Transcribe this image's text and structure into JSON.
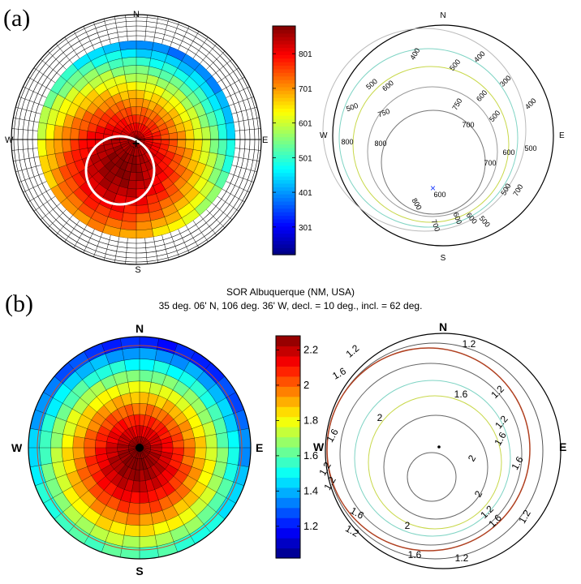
{
  "panel_a": {
    "label": "(a)",
    "polar_map": {
      "compass": {
        "n": "N",
        "e": "E",
        "s": "S",
        "w": "W"
      },
      "center_marker": "+"
    },
    "colorbar": {
      "ticks": [
        "801",
        "701",
        "601",
        "501",
        "401",
        "301"
      ],
      "tick_values": [
        80,
        70,
        60,
        50,
        40,
        30
      ],
      "range": [
        22,
        88
      ]
    },
    "contour_map": {
      "compass": {
        "n": "N",
        "e": "E",
        "s": "S",
        "w": "W"
      },
      "labels": [
        "400",
        "500",
        "500",
        "600",
        "400",
        "300",
        "750",
        "600",
        "500",
        "400",
        "500",
        "750",
        "800",
        "800",
        "600",
        "700",
        "700",
        "500",
        "800",
        "600",
        "500",
        "700",
        "700",
        "600",
        "600",
        "500"
      ],
      "center_marker": "×"
    }
  },
  "panel_b": {
    "label": "(b)",
    "title_line1": "SOR Albuquerque (NM, USA)",
    "title_line2": "35 deg. 06' N, 106 deg. 36' W, decl. = 10 deg., incl. = 62 deg.",
    "polar_map": {
      "compass": {
        "n": "N",
        "e": "E",
        "s": "S",
        "w": "W"
      }
    },
    "colorbar": {
      "ticks": [
        "2.2",
        "2",
        "1.8",
        "1.6",
        "1.4",
        "1.2"
      ],
      "tick_values": [
        2.2,
        2.0,
        1.8,
        1.6,
        1.4,
        1.2
      ],
      "range": [
        1.02,
        2.28
      ]
    },
    "contour_map": {
      "compass": {
        "n": "N",
        "e": "E",
        "s": "S",
        "w": "W"
      },
      "labels": [
        "1.2",
        "1.2",
        "1.6",
        "1.6",
        "1.2",
        "1.2",
        "2",
        "1.6",
        "2",
        "1.6",
        "1.6",
        "1.2",
        "1.2",
        "2",
        "1.2",
        "2",
        "1.6",
        "1.6",
        "1.2",
        "1.2",
        "1.6",
        "1.2"
      ]
    }
  },
  "chart_data": [
    {
      "type": "heatmap",
      "projection": "polar",
      "panel": "a",
      "colormap": "jet",
      "colorbar_ticks": [
        80,
        70,
        60,
        50,
        40,
        30
      ],
      "value_range": [
        22,
        88
      ],
      "peak_value": 87,
      "edge_value": 24
    },
    {
      "type": "contour",
      "projection": "polar",
      "panel": "a",
      "levels": [
        300,
        400,
        500,
        600,
        700,
        750,
        800
      ]
    },
    {
      "type": "heatmap",
      "projection": "polar",
      "panel": "b",
      "colormap": "jet",
      "colorbar_ticks": [
        2.2,
        2.0,
        1.8,
        1.6,
        1.4,
        1.2
      ],
      "value_range": [
        1.02,
        2.28
      ],
      "peak_value": 2.27,
      "edge_value": 1.05
    },
    {
      "type": "contour",
      "projection": "polar",
      "panel": "b",
      "levels": [
        1.2,
        1.6,
        2.0
      ]
    }
  ]
}
